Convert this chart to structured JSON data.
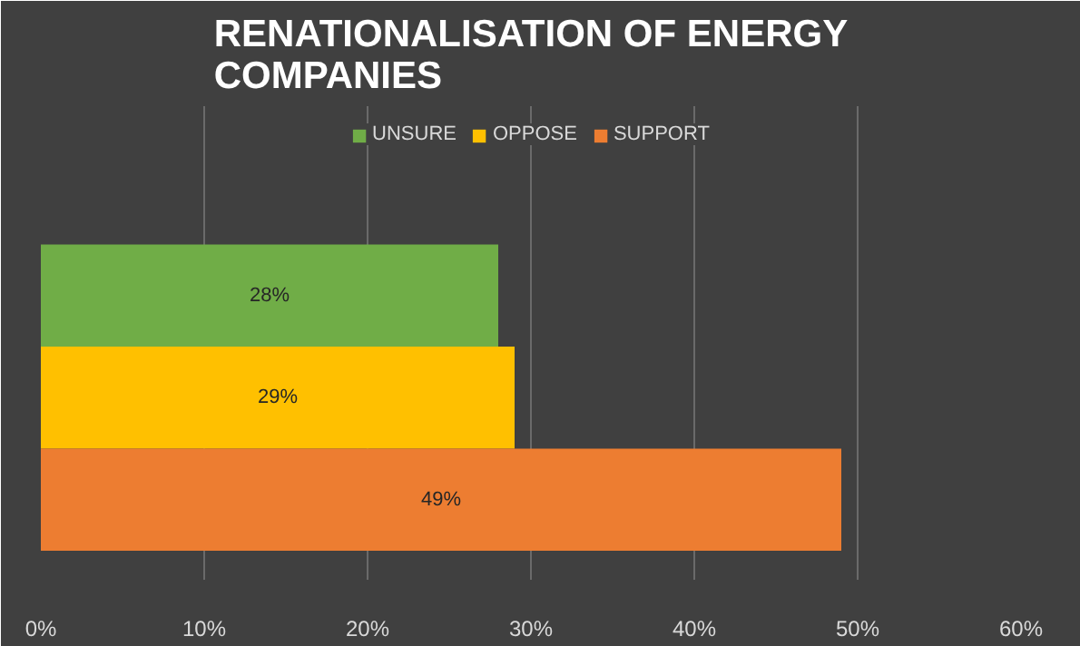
{
  "chart_data": {
    "type": "bar",
    "title": "RENATIONALISATION OF ENERGY COMPANIES",
    "orientation": "horizontal",
    "categories": [
      null
    ],
    "series": [
      {
        "name": "UNSURE",
        "color": "#70ad47",
        "values": [
          28
        ],
        "value_labels": [
          "28%"
        ]
      },
      {
        "name": "OPPOSE",
        "color": "#ffc000",
        "values": [
          29
        ],
        "value_labels": [
          "29%"
        ]
      },
      {
        "name": "SUPPORT",
        "color": "#ed7d31",
        "values": [
          49
        ],
        "value_labels": [
          "49%"
        ]
      }
    ],
    "xlim": [
      0,
      60
    ],
    "xticks": [
      {
        "value": 0,
        "label": "0%"
      },
      {
        "value": 10,
        "label": "10%"
      },
      {
        "value": 20,
        "label": "20%"
      },
      {
        "value": 30,
        "label": "30%"
      },
      {
        "value": 40,
        "label": "40%"
      },
      {
        "value": 50,
        "label": "50%"
      },
      {
        "value": 60,
        "label": "60%"
      }
    ],
    "grid": "x",
    "legend": "top"
  }
}
